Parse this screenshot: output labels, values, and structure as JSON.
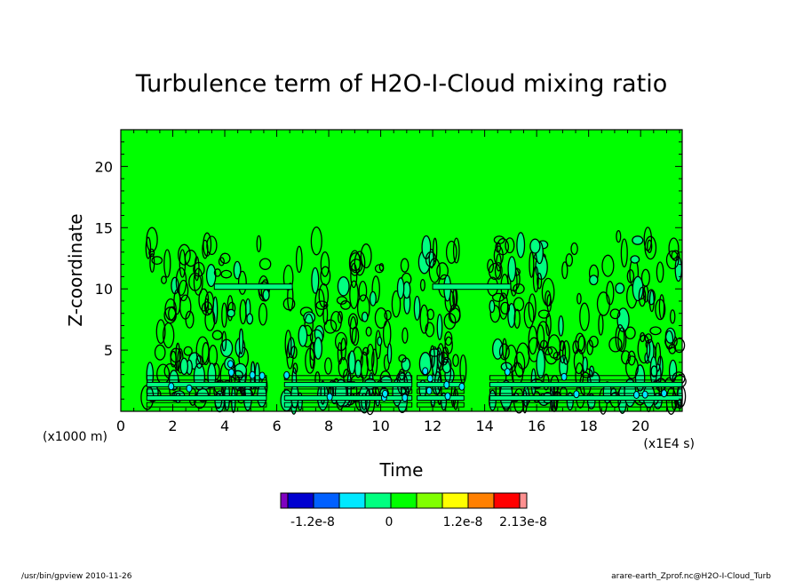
{
  "chart_data": {
    "type": "heatmap",
    "title": "Turbulence term of H2O-I-Cloud mixing ratio",
    "xlabel": "Time",
    "ylabel": "Z-coordinate",
    "x_unit": "(x1E4 s)",
    "y_unit": "(x1000 m)",
    "xlim": [
      0,
      21.6
    ],
    "ylim": [
      0,
      23
    ],
    "x_ticks": [
      "0",
      "2",
      "4",
      "6",
      "8",
      "10",
      "12",
      "14",
      "16",
      "18",
      "20"
    ],
    "y_ticks": [
      "5",
      "10",
      "15",
      "20"
    ],
    "background_color": "#00ff00",
    "colorbar": {
      "colors": [
        "#8000c0",
        "#0000d0",
        "#0060ff",
        "#00e8ff",
        "#00ff80",
        "#00ff00",
        "#80ff00",
        "#ffff00",
        "#ff8000",
        "#ff0000",
        "#ff9090"
      ],
      "tick_labels": [
        "-1.2e-8",
        "0",
        "1.2e-8",
        "2.13e-8"
      ]
    },
    "convective_bands": [
      {
        "x_start": 1.0,
        "x_end": 5.6,
        "top": 14.2
      },
      {
        "x_start": 6.3,
        "x_end": 11.2,
        "top": 14.0
      },
      {
        "x_start": 11.4,
        "x_end": 13.2,
        "top": 13.5
      },
      {
        "x_start": 14.2,
        "x_end": 21.6,
        "top": 14.3
      }
    ]
  },
  "footer": {
    "left": "/usr/bin/gpview   2010-11-26",
    "right": "arare-earth_Zprof.nc@H2O-I-Cloud_Turb"
  }
}
